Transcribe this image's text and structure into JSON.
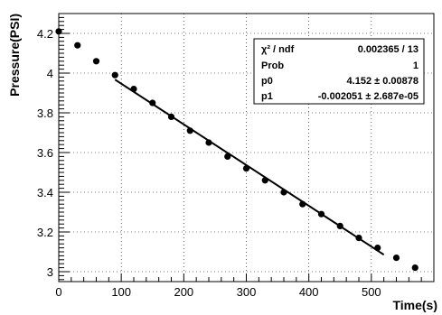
{
  "chart_data": {
    "type": "scatter",
    "xlabel": "Time(s)",
    "ylabel": "Pressure(PSI)",
    "xlim": [
      0,
      600
    ],
    "ylim": [
      2.95,
      4.3
    ],
    "grid": true,
    "x_ticks": [
      0,
      100,
      200,
      300,
      400,
      500
    ],
    "y_ticks": [
      3,
      3.2,
      3.4,
      3.6,
      3.8,
      4,
      4.2
    ],
    "y_tick_labels": [
      "3",
      "3.2",
      "3.4",
      "3.6",
      "3.8",
      "4",
      "4.2"
    ],
    "series": [
      {
        "marker": "circle",
        "x": [
          0,
          30,
          60,
          90,
          120,
          150,
          180,
          210,
          240,
          270,
          300,
          330,
          360,
          390,
          420,
          450,
          480,
          510,
          540,
          570
        ],
        "y": [
          4.21,
          4.14,
          4.06,
          3.99,
          3.92,
          3.85,
          3.78,
          3.71,
          3.65,
          3.58,
          3.52,
          3.46,
          3.4,
          3.34,
          3.29,
          3.23,
          3.17,
          3.12,
          3.07,
          3.02
        ]
      }
    ],
    "fit": {
      "type": "linear",
      "x_range": [
        90,
        520
      ],
      "p0": 4.152,
      "p1": -0.002051
    },
    "stats_box": {
      "position": "top-right",
      "rows": [
        {
          "label": "χ² / ndf",
          "value": "0.002365 / 13"
        },
        {
          "label": "Prob",
          "value": "1"
        },
        {
          "label": "p0",
          "value": "4.152 ± 0.00878"
        },
        {
          "label": "p1",
          "value": "-0.002051 ± 2.687e-05"
        }
      ]
    }
  }
}
